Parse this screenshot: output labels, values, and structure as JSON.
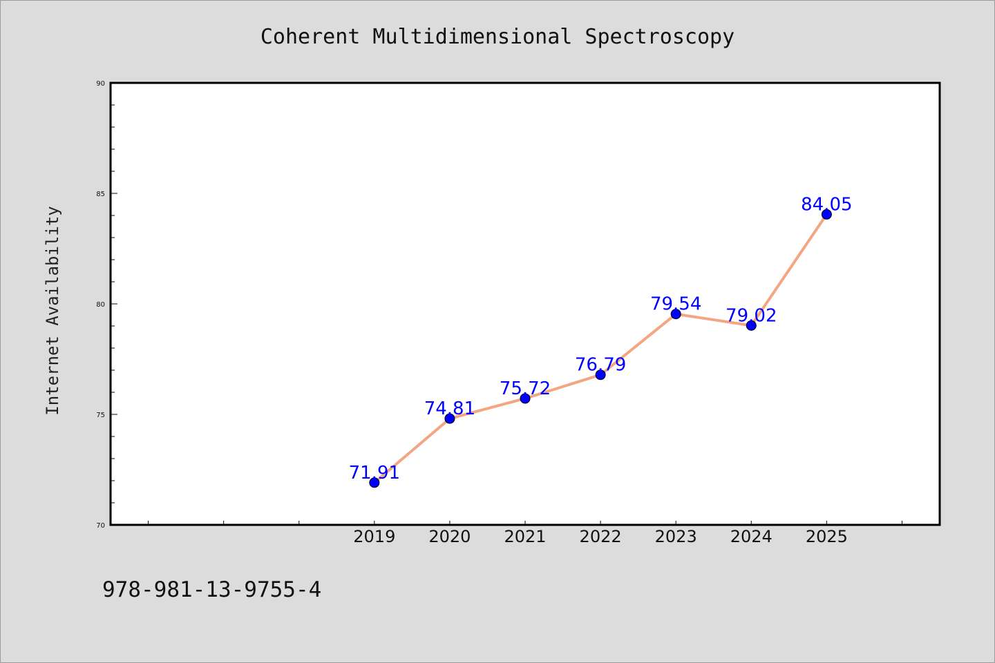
{
  "chart_data": {
    "type": "line",
    "title": "Coherent Multidimensional Spectroscopy",
    "xlabel": "",
    "ylabel": "Internet Availability",
    "x": [
      2019,
      2020,
      2021,
      2022,
      2023,
      2024,
      2025
    ],
    "x_tick_labels": [
      "2019",
      "2020",
      "2021",
      "2022",
      "2023",
      "2024",
      "2025"
    ],
    "xlim": [
      2015.5,
      2026.5
    ],
    "ylim": [
      70,
      90
    ],
    "y_ticks": [
      "70",
      "75",
      "80",
      "85",
      "90"
    ],
    "series": [
      {
        "values": [
          71.91,
          74.81,
          75.72,
          76.79,
          79.54,
          79.02,
          84.05
        ],
        "data_labels": [
          "71.91",
          "74.81",
          "75.72",
          "76.79",
          "79.54",
          "79.02",
          "84.05"
        ]
      }
    ],
    "grid": false,
    "legend": "none"
  },
  "colors": {
    "background": "#dcdcdc",
    "plot_background": "#ffffff",
    "line": "#f4a582",
    "marker": "#0000ff",
    "data_label": "#0000ff"
  },
  "footer": {
    "isbn": "978-981-13-9755-4"
  }
}
